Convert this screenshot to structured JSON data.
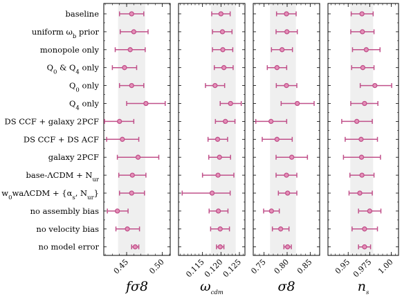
{
  "chart_data": {
    "type": "forest",
    "row_labels": [
      "baseline",
      "uniform ω_b prior",
      "monopole only",
      "Q0 & Q4 only",
      "Q0 only",
      "Q4 only",
      "DS CCF + galaxy 2PCF",
      "DS CCF + DS ACF",
      "galaxy 2PCF",
      "base-ΛCDM + N_ur",
      "w0waΛCDM + {α_s, N_ur}",
      "no assembly bias",
      "no velocity bias",
      "no model error"
    ],
    "marker_color": "#c0508a",
    "band_color": "#efefef",
    "panels": [
      {
        "xlabel": "fσ8",
        "xlim": [
          0.418,
          0.511
        ],
        "ticks": [
          0.45,
          0.5
        ],
        "tick_labels": [
          "0.45",
          "0.50"
        ],
        "band": [
          0.438,
          0.476
        ],
        "points": [
          {
            "value": 0.457,
            "lo": 0.44,
            "hi": 0.474
          },
          {
            "value": 0.46,
            "lo": 0.441,
            "hi": 0.48
          },
          {
            "value": 0.455,
            "lo": 0.434,
            "hi": 0.476
          },
          {
            "value": 0.447,
            "lo": 0.43,
            "hi": 0.464
          },
          {
            "value": 0.457,
            "lo": 0.44,
            "hi": 0.474
          },
          {
            "value": 0.477,
            "lo": 0.45,
            "hi": 0.504
          },
          {
            "value": 0.44,
            "lo": 0.419,
            "hi": 0.46
          },
          {
            "value": 0.444,
            "lo": 0.422,
            "hi": 0.467
          },
          {
            "value": 0.466,
            "lo": 0.437,
            "hi": 0.495
          },
          {
            "value": 0.458,
            "lo": 0.439,
            "hi": 0.477
          },
          {
            "value": 0.457,
            "lo": 0.44,
            "hi": 0.475
          },
          {
            "value": 0.437,
            "lo": 0.423,
            "hi": 0.452
          },
          {
            "value": 0.451,
            "lo": 0.435,
            "hi": 0.468
          },
          {
            "value": 0.462,
            "lo": 0.457,
            "hi": 0.467
          }
        ]
      },
      {
        "xlabel": "ω_cdm",
        "xlim": [
          0.1085,
          0.1265
        ],
        "ticks": [
          0.115,
          0.12,
          0.125
        ],
        "tick_labels": [
          "0.115",
          "0.120",
          "0.125"
        ],
        "band": [
          0.1173,
          0.124
        ],
        "points": [
          {
            "value": 0.12,
            "lo": 0.1175,
            "hi": 0.1225
          },
          {
            "value": 0.1204,
            "lo": 0.1177,
            "hi": 0.123
          },
          {
            "value": 0.1205,
            "lo": 0.1177,
            "hi": 0.1232
          },
          {
            "value": 0.1208,
            "lo": 0.1182,
            "hi": 0.1233
          },
          {
            "value": 0.1184,
            "lo": 0.1158,
            "hi": 0.121
          },
          {
            "value": 0.1226,
            "lo": 0.1198,
            "hi": 0.1255
          },
          {
            "value": 0.1212,
            "lo": 0.1185,
            "hi": 0.1238
          },
          {
            "value": 0.1191,
            "lo": 0.1165,
            "hi": 0.1218
          },
          {
            "value": 0.1196,
            "lo": 0.1167,
            "hi": 0.1226
          },
          {
            "value": 0.1192,
            "lo": 0.115,
            "hi": 0.1235
          },
          {
            "value": 0.1176,
            "lo": 0.1095,
            "hi": 0.1225
          },
          {
            "value": 0.1193,
            "lo": 0.1168,
            "hi": 0.1219
          },
          {
            "value": 0.1198,
            "lo": 0.1172,
            "hi": 0.1223
          },
          {
            "value": 0.1198,
            "lo": 0.1188,
            "hi": 0.1208
          }
        ]
      },
      {
        "xlabel": "σ8",
        "xlim": [
          0.7265,
          0.8705
        ],
        "ticks": [
          0.75,
          0.8,
          0.85
        ],
        "tick_labels": [
          "0.75",
          "0.80",
          "0.85"
        ],
        "band": [
          0.763,
          0.819
        ],
        "points": [
          {
            "value": 0.7985,
            "lo": 0.777,
            "hi": 0.8195
          },
          {
            "value": 0.7995,
            "lo": 0.776,
            "hi": 0.822
          },
          {
            "value": 0.789,
            "lo": 0.766,
            "hi": 0.8115
          },
          {
            "value": 0.778,
            "lo": 0.757,
            "hi": 0.799
          },
          {
            "value": 0.7985,
            "lo": 0.7765,
            "hi": 0.821
          },
          {
            "value": 0.822,
            "lo": 0.787,
            "hi": 0.8585
          },
          {
            "value": 0.765,
            "lo": 0.732,
            "hi": 0.799
          },
          {
            "value": 0.778,
            "lo": 0.746,
            "hi": 0.811
          },
          {
            "value": 0.81,
            "lo": 0.776,
            "hi": 0.844
          },
          {
            "value": 0.7985,
            "lo": 0.776,
            "hi": 0.821
          },
          {
            "value": 0.801,
            "lo": 0.781,
            "hi": 0.821
          },
          {
            "value": 0.766,
            "lo": 0.749,
            "hi": 0.783
          },
          {
            "value": 0.786,
            "lo": 0.768,
            "hi": 0.804
          },
          {
            "value": 0.801,
            "lo": 0.793,
            "hi": 0.809
          }
        ]
      },
      {
        "xlabel": "n_s",
        "xlim": [
          0.9265,
          1.0085
        ],
        "ticks": [
          0.95,
          0.975,
          1.0
        ],
        "tick_labels": [
          "0.95",
          "0.975",
          "1.00"
        ],
        "band": [
          0.9525,
          0.979
        ],
        "points": [
          {
            "value": 0.966,
            "lo": 0.9535,
            "hi": 0.979
          },
          {
            "value": 0.9665,
            "lo": 0.953,
            "hi": 0.98
          },
          {
            "value": 0.971,
            "lo": 0.955,
            "hi": 0.987
          },
          {
            "value": 0.967,
            "lo": 0.954,
            "hi": 0.98
          },
          {
            "value": 0.981,
            "lo": 0.964,
            "hi": 1.0005
          },
          {
            "value": 0.969,
            "lo": 0.953,
            "hi": 0.9845
          },
          {
            "value": 0.96,
            "lo": 0.9425,
            "hi": 0.978
          },
          {
            "value": 0.965,
            "lo": 0.9465,
            "hi": 0.984
          },
          {
            "value": 0.9655,
            "lo": 0.9445,
            "hi": 0.9875
          },
          {
            "value": 0.966,
            "lo": 0.952,
            "hi": 0.98
          },
          {
            "value": 0.9635,
            "lo": 0.951,
            "hi": 0.978
          },
          {
            "value": 0.975,
            "lo": 0.962,
            "hi": 0.988
          },
          {
            "value": 0.969,
            "lo": 0.9545,
            "hi": 0.984
          },
          {
            "value": 0.969,
            "lo": 0.962,
            "hi": 0.976
          }
        ]
      }
    ]
  }
}
